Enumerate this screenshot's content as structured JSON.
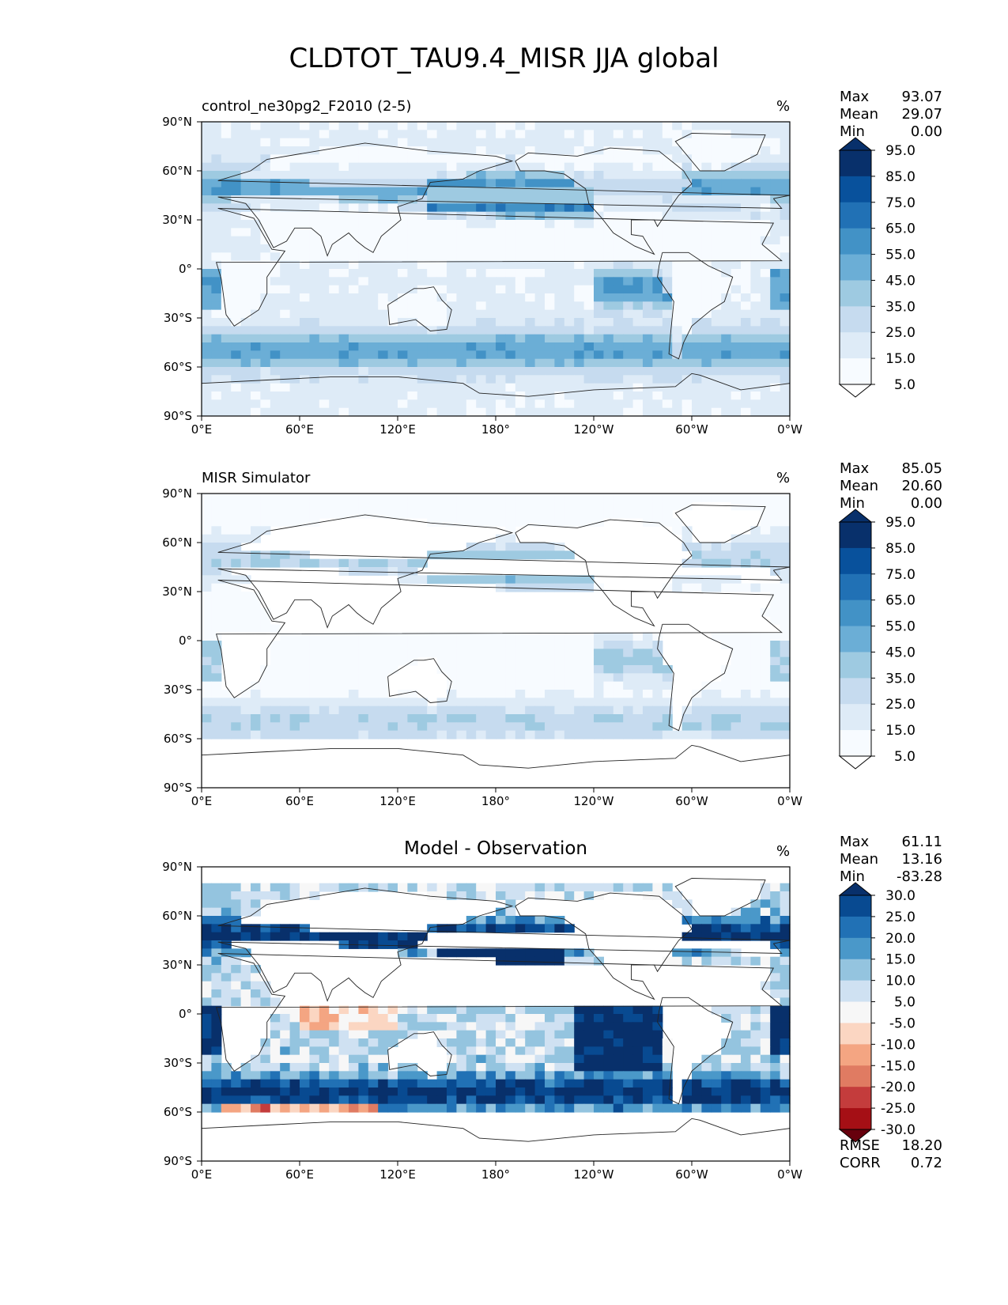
{
  "title": "CLDTOT_TAU9.4_MISR JJA global",
  "chart_data": [
    {
      "type": "heatmap",
      "subtitle": "control_ne30pg2_F2010 (2-5)",
      "units": "%",
      "stats": [
        {
          "label": "Max",
          "value": "93.07"
        },
        {
          "label": "Mean",
          "value": "29.07"
        },
        {
          "label": "Min",
          "value": "0.00"
        }
      ],
      "colorbar": {
        "levels": [
          "95.0",
          "85.0",
          "75.0",
          "65.0",
          "55.0",
          "45.0",
          "35.0",
          "25.0",
          "15.0",
          "5.0"
        ],
        "colors": [
          "#08306b",
          "#08519c",
          "#2171b5",
          "#4292c6",
          "#6baed6",
          "#9ecae1",
          "#c6dbef",
          "#deebf7",
          "#f7fbff"
        ],
        "top_color": "#08306b",
        "bottom_color": "#ffffff"
      }
    },
    {
      "type": "heatmap",
      "subtitle": "MISR Simulator",
      "units": "%",
      "stats": [
        {
          "label": "Max",
          "value": "85.05"
        },
        {
          "label": "Mean",
          "value": "20.60"
        },
        {
          "label": "Min",
          "value": "0.00"
        }
      ],
      "colorbar": {
        "levels": [
          "95.0",
          "85.0",
          "75.0",
          "65.0",
          "55.0",
          "45.0",
          "35.0",
          "25.0",
          "15.0",
          "5.0"
        ],
        "colors": [
          "#08306b",
          "#08519c",
          "#2171b5",
          "#4292c6",
          "#6baed6",
          "#9ecae1",
          "#c6dbef",
          "#deebf7",
          "#f7fbff"
        ],
        "top_color": "#08306b",
        "bottom_color": "#ffffff"
      }
    },
    {
      "type": "heatmap",
      "title": "Model - Observation",
      "units": "%",
      "stats": [
        {
          "label": "Max",
          "value": "61.11"
        },
        {
          "label": "Mean",
          "value": "13.16"
        },
        {
          "label": "Min",
          "value": "-83.28"
        }
      ],
      "extra_stats": [
        {
          "label": "RMSE",
          "value": "18.20"
        },
        {
          "label": "CORR",
          "value": "0.72"
        }
      ],
      "colorbar": {
        "levels": [
          "30.0",
          "25.0",
          "20.0",
          "15.0",
          "10.0",
          "5.0",
          "-5.0",
          "-10.0",
          "-15.0",
          "-20.0",
          "-25.0",
          "-30.0"
        ],
        "colors": [
          "#084a91",
          "#2171b5",
          "#4a98c9",
          "#94c4df",
          "#cfe1f2",
          "#f7f7f7",
          "#fbd6c2",
          "#f4a582",
          "#e07b62",
          "#c43c3c",
          "#a50f15"
        ],
        "top_color": "#08306b",
        "bottom_color": "#67000d"
      }
    }
  ],
  "axes": {
    "x_ticks": [
      "0°E",
      "60°E",
      "120°E",
      "180°",
      "120°W",
      "60°W",
      "0°W"
    ],
    "y_ticks": [
      "90°N",
      "60°N",
      "30°N",
      "0°",
      "30°S",
      "60°S",
      "90°S"
    ],
    "xlim": [
      0,
      360
    ],
    "ylim": [
      -90,
      90
    ]
  }
}
